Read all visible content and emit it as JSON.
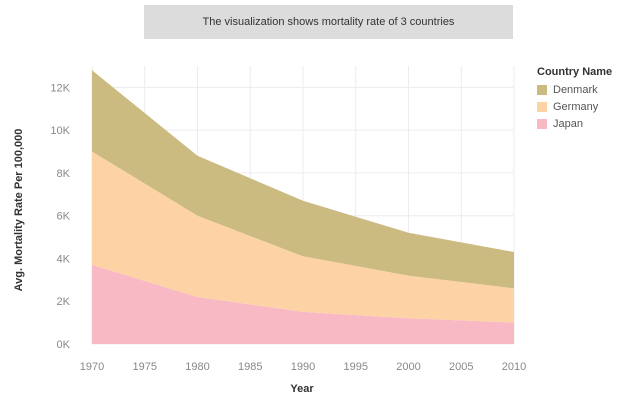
{
  "title": "The visualization shows mortality rate of 3 countries",
  "legend": {
    "title": "Country Name"
  },
  "chart_data": {
    "type": "area",
    "stacked": true,
    "xlabel": "Year",
    "ylabel": "Avg. Mortality Rate Per 100,000",
    "x": [
      1970,
      1980,
      1990,
      2000,
      2010
    ],
    "xticks": [
      "1970",
      "1975",
      "1980",
      "1985",
      "1990",
      "1995",
      "2000",
      "2005",
      "2010"
    ],
    "yticks": [
      "0K",
      "2K",
      "4K",
      "6K",
      "8K",
      "10K",
      "12K"
    ],
    "ylim": [
      0,
      13000
    ],
    "xlim": [
      1970,
      2010
    ],
    "grid": true,
    "legend_position": "right",
    "series": [
      {
        "name": "Japan",
        "color": "#f8b9c4",
        "values": [
          3700,
          2200,
          1500,
          1200,
          1000
        ]
      },
      {
        "name": "Germany",
        "color": "#fdd3a6",
        "values": [
          5300,
          3800,
          2600,
          2000,
          1600
        ]
      },
      {
        "name": "Denmark",
        "color": "#cbbb80",
        "values": [
          3800,
          2800,
          2600,
          2000,
          1700
        ]
      }
    ]
  }
}
